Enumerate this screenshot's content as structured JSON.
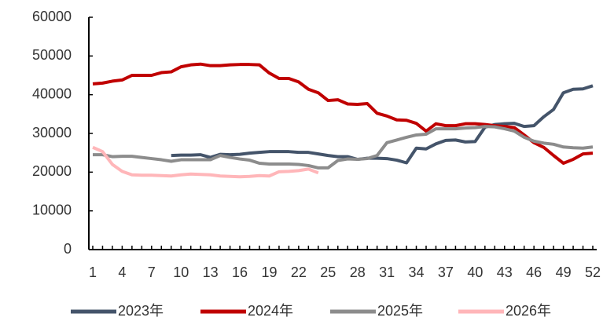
{
  "chart_data": {
    "type": "line",
    "x": [
      1,
      2,
      3,
      4,
      5,
      6,
      7,
      8,
      9,
      10,
      11,
      12,
      13,
      14,
      15,
      16,
      17,
      18,
      19,
      20,
      21,
      22,
      23,
      24,
      25,
      26,
      27,
      28,
      29,
      30,
      31,
      32,
      33,
      34,
      35,
      36,
      37,
      38,
      39,
      40,
      41,
      42,
      43,
      44,
      45,
      46,
      47,
      48,
      49,
      50,
      51,
      52
    ],
    "xlim": [
      0.6,
      52.4
    ],
    "xticks": [
      1,
      4,
      7,
      10,
      13,
      16,
      19,
      22,
      25,
      28,
      31,
      34,
      37,
      40,
      43,
      46,
      49,
      52
    ],
    "ylim": [
      0,
      60000
    ],
    "yticks": [
      0,
      10000,
      20000,
      30000,
      40000,
      50000,
      60000
    ],
    "grid": false,
    "legend": "bottom",
    "series": [
      {
        "name": "2023年",
        "color": "#44546a",
        "values": [
          null,
          null,
          null,
          null,
          null,
          null,
          null,
          null,
          24300,
          24400,
          24400,
          24500,
          23800,
          24600,
          24500,
          24600,
          24900,
          25100,
          25300,
          25300,
          25300,
          25100,
          25100,
          24700,
          24300,
          24000,
          24000,
          23300,
          23600,
          23600,
          23500,
          23100,
          22400,
          26200,
          26000,
          27300,
          28200,
          28300,
          27800,
          27900,
          31600,
          32300,
          32500,
          32600,
          31800,
          32000,
          34300,
          36200,
          40500,
          41400,
          41500,
          42300
        ]
      },
      {
        "name": "2024年",
        "color": "#c00000",
        "values": [
          42800,
          43000,
          43500,
          43800,
          45000,
          45000,
          45000,
          45700,
          45900,
          47200,
          47700,
          47900,
          47500,
          47500,
          47700,
          47800,
          47800,
          47700,
          45600,
          44200,
          44200,
          43300,
          41400,
          40500,
          38500,
          38700,
          37600,
          37500,
          37700,
          35200,
          34500,
          33500,
          33400,
          32600,
          30600,
          32500,
          32000,
          32000,
          32500,
          32500,
          32300,
          32000,
          31800,
          31500,
          29600,
          27600,
          26400,
          24300,
          22300,
          23300,
          24700,
          24900
        ]
      },
      {
        "name": "2025年",
        "color": "#8c8c8c",
        "values": [
          24500,
          24500,
          24000,
          24100,
          24100,
          23800,
          23500,
          23200,
          22800,
          23200,
          23200,
          23200,
          23200,
          24300,
          23800,
          23400,
          23100,
          22300,
          22100,
          22100,
          22100,
          22000,
          21700,
          21100,
          21100,
          23000,
          23400,
          23300,
          23500,
          24300,
          27600,
          28300,
          29000,
          29600,
          29800,
          31200,
          31200,
          31200,
          31400,
          31500,
          31800,
          31700,
          31200,
          30600,
          29000,
          28000,
          27500,
          27200,
          26500,
          26300,
          26200,
          26500
        ]
      },
      {
        "name": "2026年",
        "color": "#ffb6b9",
        "values": [
          26400,
          25300,
          22000,
          20200,
          19300,
          19200,
          19200,
          19100,
          19000,
          19300,
          19500,
          19400,
          19300,
          19000,
          18900,
          18800,
          18900,
          19100,
          19000,
          20100,
          20200,
          20400,
          20800,
          19800,
          null,
          null,
          null,
          null,
          null,
          null,
          null,
          null,
          null,
          null,
          null,
          null,
          null,
          null,
          null,
          null,
          null,
          null,
          null,
          null,
          null,
          null,
          null,
          null,
          null,
          null,
          null,
          null
        ]
      }
    ]
  }
}
